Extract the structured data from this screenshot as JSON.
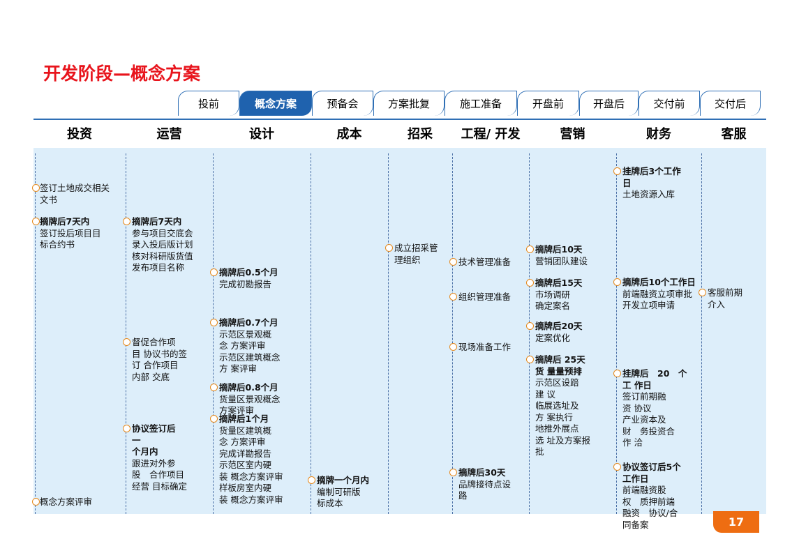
{
  "title": "开发阶段—概念方案",
  "tabs": [
    "投前",
    "概念方案",
    "预备会",
    "方案批复",
    "施工准备",
    "开盘前",
    "开盘后",
    "交付前",
    "交付后"
  ],
  "columns": [
    {
      "header": "投资",
      "items": [
        {
          "lines": [
            "签订土地成交相关",
            "文书"
          ]
        },
        {
          "bold": [
            "摘牌后7天内"
          ],
          "lines": [
            "签订投后项目目",
            "标合约书"
          ]
        },
        {
          "lines": [
            "概念方案评审"
          ]
        }
      ]
    },
    {
      "header": "运营",
      "items": [
        {
          "bold": [
            "摘牌后7天内"
          ],
          "lines": [
            "参与项目交底会",
            "录入投后版计划",
            "核对科研版货值",
            "发布项目名称"
          ]
        },
        {
          "lines": [
            "督促合作项",
            "目 协议书的签",
            "订 合作项目",
            "内部 交底"
          ]
        },
        {
          "bold": [
            "协议签订后",
            "一",
            "个月内"
          ],
          "lines": [
            "跟进对外参",
            "股　合作项目",
            "经营 目标确定"
          ]
        }
      ]
    },
    {
      "header": "设计",
      "items": [
        {
          "bold": [
            "摘牌后0.5个月"
          ],
          "lines": [
            "完成初勘报告"
          ]
        },
        {
          "bold": [
            "摘牌后0.7个月"
          ],
          "lines": [
            "示范区景观概",
            "念 方案评审",
            "示范区建筑概念",
            "方 案评审"
          ]
        },
        {
          "bold": [
            "摘牌后0.8个月"
          ],
          "lines": [
            "货量区景观概念",
            "方案评审"
          ]
        },
        {
          "bold": [
            "摘牌后1个月"
          ],
          "lines": [
            "货量区建筑概",
            "念 方案评审",
            "完成详勘报告",
            "示范区室内硬",
            "装 概念方案评审",
            "样板房室内硬",
            "装 概念方案评审"
          ]
        }
      ]
    },
    {
      "header": "成本",
      "items": [
        {
          "bold": [
            "摘牌一个月内"
          ],
          "lines": [
            "编制可研版",
            "标成本"
          ]
        }
      ]
    },
    {
      "header": "招采",
      "items": [
        {
          "lines": [
            "成立招采管",
            "理组织"
          ]
        }
      ]
    },
    {
      "header": "工程/ 开发",
      "items": [
        {
          "lines": [
            "技术管理准备"
          ]
        },
        {
          "lines": [
            "组织管理准备"
          ]
        },
        {
          "lines": [
            "现场准备工作"
          ]
        },
        {
          "bold": [
            "摘牌后30天"
          ],
          "lines": [
            "品牌接待点设",
            "路"
          ]
        }
      ]
    },
    {
      "header": "营销",
      "items": [
        {
          "bold": [
            "摘牌后10天"
          ],
          "lines": [
            "营销团队建设"
          ]
        },
        {
          "bold": [
            "摘牌后15天"
          ],
          "lines": [
            "市场调研",
            "确定案名"
          ]
        },
        {
          "bold": [
            "摘牌后20天"
          ],
          "lines": [
            "定案优化"
          ]
        },
        {
          "bold": [
            "摘牌后 25天",
            "货 量量预排"
          ],
          "lines": [
            "示范区设踣",
            "建 议",
            "临展选址及",
            "方 案执行",
            "地推外展点",
            "选 址及方案报",
            "批"
          ]
        }
      ]
    },
    {
      "header": "财务",
      "items": [
        {
          "bold": [
            "挂牌后3个工作",
            "日"
          ],
          "lines": [
            "土地资源入库"
          ]
        },
        {
          "bold": [
            "摘牌后10个工作日"
          ],
          "lines": [
            "前端融资立项审批",
            "开发立项申请"
          ]
        },
        {
          "bold": [
            "挂牌后　20　个",
            "工 作日"
          ],
          "lines": [
            "签订前期融",
            "资 协议",
            "产业资本及",
            "财　务投资合",
            "作 洽"
          ]
        },
        {
          "bold": [
            "协议签订后5个",
            "工作日"
          ],
          "lines": [
            "前端融资股",
            "权　质押前端",
            "融资　协议/合",
            "同备案"
          ]
        }
      ]
    },
    {
      "header": "客服",
      "items": [
        {
          "lines": [
            "客服前期",
            "介入"
          ]
        }
      ]
    }
  ],
  "page_number": "17"
}
